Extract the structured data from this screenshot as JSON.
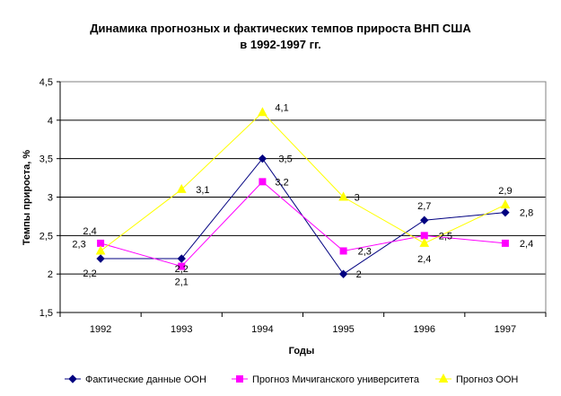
{
  "chart_data": {
    "type": "line",
    "title_line1": "Динамика прогнозных и фактических темпов прироста ВНП США",
    "title_line2": "в 1992-1997 гг.",
    "xlabel": "Годы",
    "ylabel": "Темпы прироста, %",
    "categories": [
      "1992",
      "1993",
      "1994",
      "1995",
      "1996",
      "1997"
    ],
    "ylim": [
      1.5,
      4.5
    ],
    "yticks": [
      1.5,
      2,
      2.5,
      3,
      3.5,
      4,
      4.5
    ],
    "ytick_labels": [
      "1,5",
      "2",
      "2,5",
      "3",
      "3,5",
      "4",
      "4,5"
    ],
    "grid": true,
    "legend_position": "bottom",
    "series": [
      {
        "name": "Фактические данные ООН",
        "values": [
          2.2,
          2.2,
          3.5,
          2.0,
          2.7,
          2.8
        ],
        "labels": [
          "2,2",
          "2,2",
          "3,5",
          "2",
          "2,7",
          "2,8"
        ],
        "color": "#000080",
        "marker": "diamond"
      },
      {
        "name": "Прогноз Мичиганского университета",
        "values": [
          2.4,
          2.1,
          3.2,
          2.3,
          2.5,
          2.4
        ],
        "labels": [
          "2,4",
          "2,1",
          "3,2",
          "2,3",
          "2,5",
          "2,4"
        ],
        "color": "#ff00ff",
        "marker": "square"
      },
      {
        "name": "Прогноз ООН",
        "values": [
          2.3,
          3.1,
          4.1,
          3.0,
          2.4,
          2.9
        ],
        "labels": [
          "2,3",
          "3,1",
          "4,1",
          "3",
          "2,4",
          "2,9"
        ],
        "color": "#ffff00",
        "marker": "triangle"
      }
    ]
  }
}
